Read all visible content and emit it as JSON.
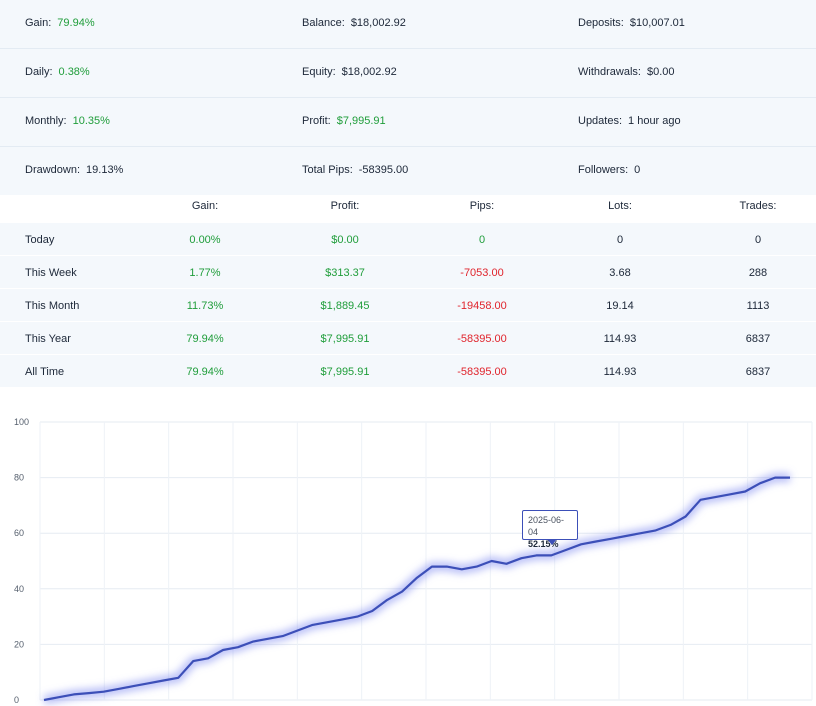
{
  "summary": {
    "gain_label": "Gain:",
    "gain_value": "79.94%",
    "balance_label": "Balance:",
    "balance_value": "$18,002.92",
    "deposits_label": "Deposits:",
    "deposits_value": "$10,007.01",
    "daily_label": "Daily:",
    "daily_value": "0.38%",
    "equity_label": "Equity:",
    "equity_value": "$18,002.92",
    "withdrawals_label": "Withdrawals:",
    "withdrawals_value": "$0.00",
    "monthly_label": "Monthly:",
    "monthly_value": "10.35%",
    "profit_label": "Profit:",
    "profit_value": "$7,995.91",
    "updates_label": "Updates:",
    "updates_value": "1 hour ago",
    "drawdown_label": "Drawdown:",
    "drawdown_value": "19.13%",
    "pips_label": "Total Pips:",
    "pips_value": "-58395.00",
    "followers_label": "Followers:",
    "followers_value": "0"
  },
  "period_table": {
    "headers": [
      "",
      "Gain:",
      "Profit:",
      "Pips:",
      "Lots:",
      "Trades:"
    ],
    "rows": [
      {
        "period": "Today",
        "gain": "0.00%",
        "profit": "$0.00",
        "pips": "0",
        "lots": "0",
        "trades": "0"
      },
      {
        "period": "This Week",
        "gain": "1.77%",
        "profit": "$313.37",
        "pips": "-7053.00",
        "lots": "3.68",
        "trades": "288"
      },
      {
        "period": "This Month",
        "gain": "11.73%",
        "profit": "$1,889.45",
        "pips": "-19458.00",
        "lots": "19.14",
        "trades": "1113"
      },
      {
        "period": "This Year",
        "gain": "79.94%",
        "profit": "$7,995.91",
        "pips": "-58395.00",
        "lots": "114.93",
        "trades": "6837"
      },
      {
        "period": "All Time",
        "gain": "79.94%",
        "profit": "$7,995.91",
        "pips": "-58395.00",
        "lots": "114.93",
        "trades": "6837"
      }
    ]
  },
  "colors": {
    "positive": "#1f9d3a",
    "negative": "#e0242c",
    "line": "#3c4fb8",
    "background": "#f4f8fc"
  },
  "chart_data": {
    "type": "line",
    "ylim": [
      0,
      100
    ],
    "yticks": [
      "0",
      "20",
      "40",
      "60",
      "80",
      "100"
    ],
    "grid": true,
    "series": [
      {
        "values": [
          0,
          1,
          2,
          2.5,
          3,
          4,
          5,
          6,
          7,
          8,
          14,
          15,
          18,
          19,
          21,
          22,
          23,
          25,
          27,
          28,
          29,
          30,
          32,
          36,
          39,
          44,
          48,
          48,
          47,
          48,
          50,
          49,
          51,
          52,
          52,
          54,
          56,
          57,
          58,
          59,
          60,
          61,
          63,
          66,
          72,
          73,
          74,
          75,
          78,
          80,
          80
        ]
      }
    ],
    "tooltip": {
      "date": "2025-06-04",
      "value": "52.15%"
    }
  }
}
